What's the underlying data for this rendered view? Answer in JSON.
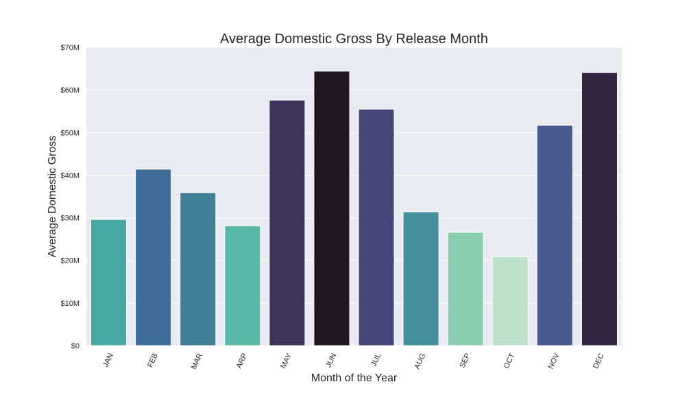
{
  "chart_data": {
    "type": "bar",
    "title": "Average Domestic Gross By Release Month",
    "xlabel": "Month of the Year",
    "ylabel": "Average Domestic Gross",
    "categories": [
      "JAN",
      "FEB",
      "MAR",
      "ARP",
      "MAY",
      "JUN",
      "JUL",
      "AUG",
      "SEP",
      "OCT",
      "NOV",
      "DEC"
    ],
    "values": [
      29.6,
      41.4,
      35.9,
      28.1,
      57.6,
      64.4,
      55.5,
      31.4,
      26.6,
      20.9,
      51.7,
      64.1
    ],
    "value_unit": "millions USD",
    "ylim": [
      0,
      70
    ],
    "yticks": [
      0,
      10,
      20,
      30,
      40,
      50,
      60,
      70
    ],
    "ytick_labels": [
      "$0",
      "$10M",
      "$20M",
      "$30M",
      "$40M",
      "$50M",
      "$60M",
      "$70M"
    ],
    "bar_colors": [
      "#48a8a4",
      "#3e6e97",
      "#407f98",
      "#5ab8a6",
      "#3c3459",
      "#201620",
      "#48477c",
      "#438f9b",
      "#8acdb0",
      "#bde1ca",
      "#465a8f",
      "#312540"
    ],
    "background_color": "#eaeaf2",
    "grid": true,
    "grid_color": "#ffffff",
    "xtick_rotation": "-65deg",
    "legend": "none"
  }
}
